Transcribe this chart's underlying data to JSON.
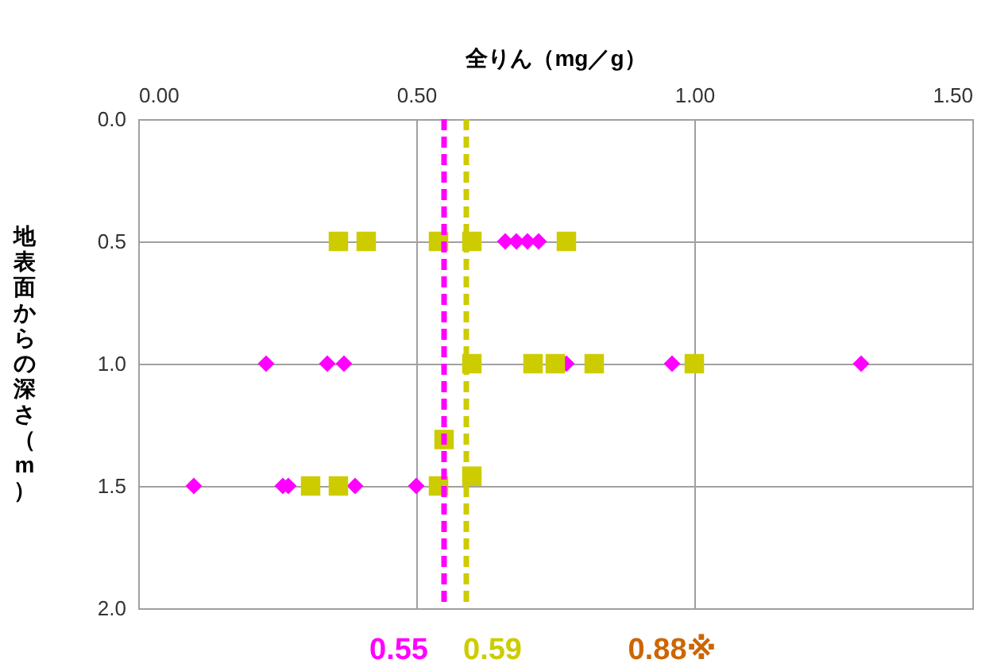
{
  "chart_data": {
    "type": "scatter",
    "xlabel": "全りん（mg／g）",
    "ylabel": "地表面からの深さ（m）",
    "xlim": [
      0,
      1.5
    ],
    "xticks": [
      {
        "value": 0,
        "label": "0.00"
      },
      {
        "value": 0.5,
        "label": "0.50"
      },
      {
        "value": 1,
        "label": "1.00"
      },
      {
        "value": 1.5,
        "label": "1.50"
      }
    ],
    "ylim": [
      2,
      0
    ],
    "yticks": [
      {
        "value": 0,
        "label": "0.0"
      },
      {
        "value": 0.5,
        "label": "0.5"
      },
      {
        "value": 1,
        "label": "1.0"
      },
      {
        "value": 1.5,
        "label": "1.5"
      },
      {
        "value": 2,
        "label": "2.0"
      }
    ],
    "grid": true,
    "series": [
      {
        "color": "#ff00ff",
        "marker": "diamond",
        "x": [
          0.66,
          0.68,
          0.7,
          0.72,
          0.23,
          0.34,
          0.37,
          0.77,
          0.96,
          1.3,
          0.1,
          0.26,
          0.27,
          0.39,
          0.5
        ],
        "values": [
          0.5,
          0.5,
          0.5,
          0.5,
          1,
          1,
          1,
          1,
          1,
          1,
          1.5,
          1.5,
          1.5,
          1.5,
          1.5
        ]
      },
      {
        "color": "#cccc00",
        "marker": "square",
        "x": [
          0.36,
          0.41,
          0.54,
          0.6,
          0.77,
          0.6,
          0.71,
          0.75,
          0.82,
          1.0,
          0.31,
          0.36,
          0.54,
          0.55,
          0.6
        ],
        "values": [
          0.5,
          0.5,
          0.5,
          0.5,
          0.5,
          1,
          1,
          1,
          1,
          1,
          1.5,
          1.5,
          1.5,
          1.31,
          1.46
        ]
      }
    ],
    "ref_lines": [
      {
        "axis": "x",
        "value": 0.55,
        "label": "0.55",
        "color": "#ff00ff",
        "line_style": "dashed"
      },
      {
        "axis": "x",
        "value": 0.59,
        "label": "0.59",
        "color": "#cccc00",
        "line_style": "dashed"
      }
    ],
    "annotations": [
      "0.88※"
    ]
  }
}
